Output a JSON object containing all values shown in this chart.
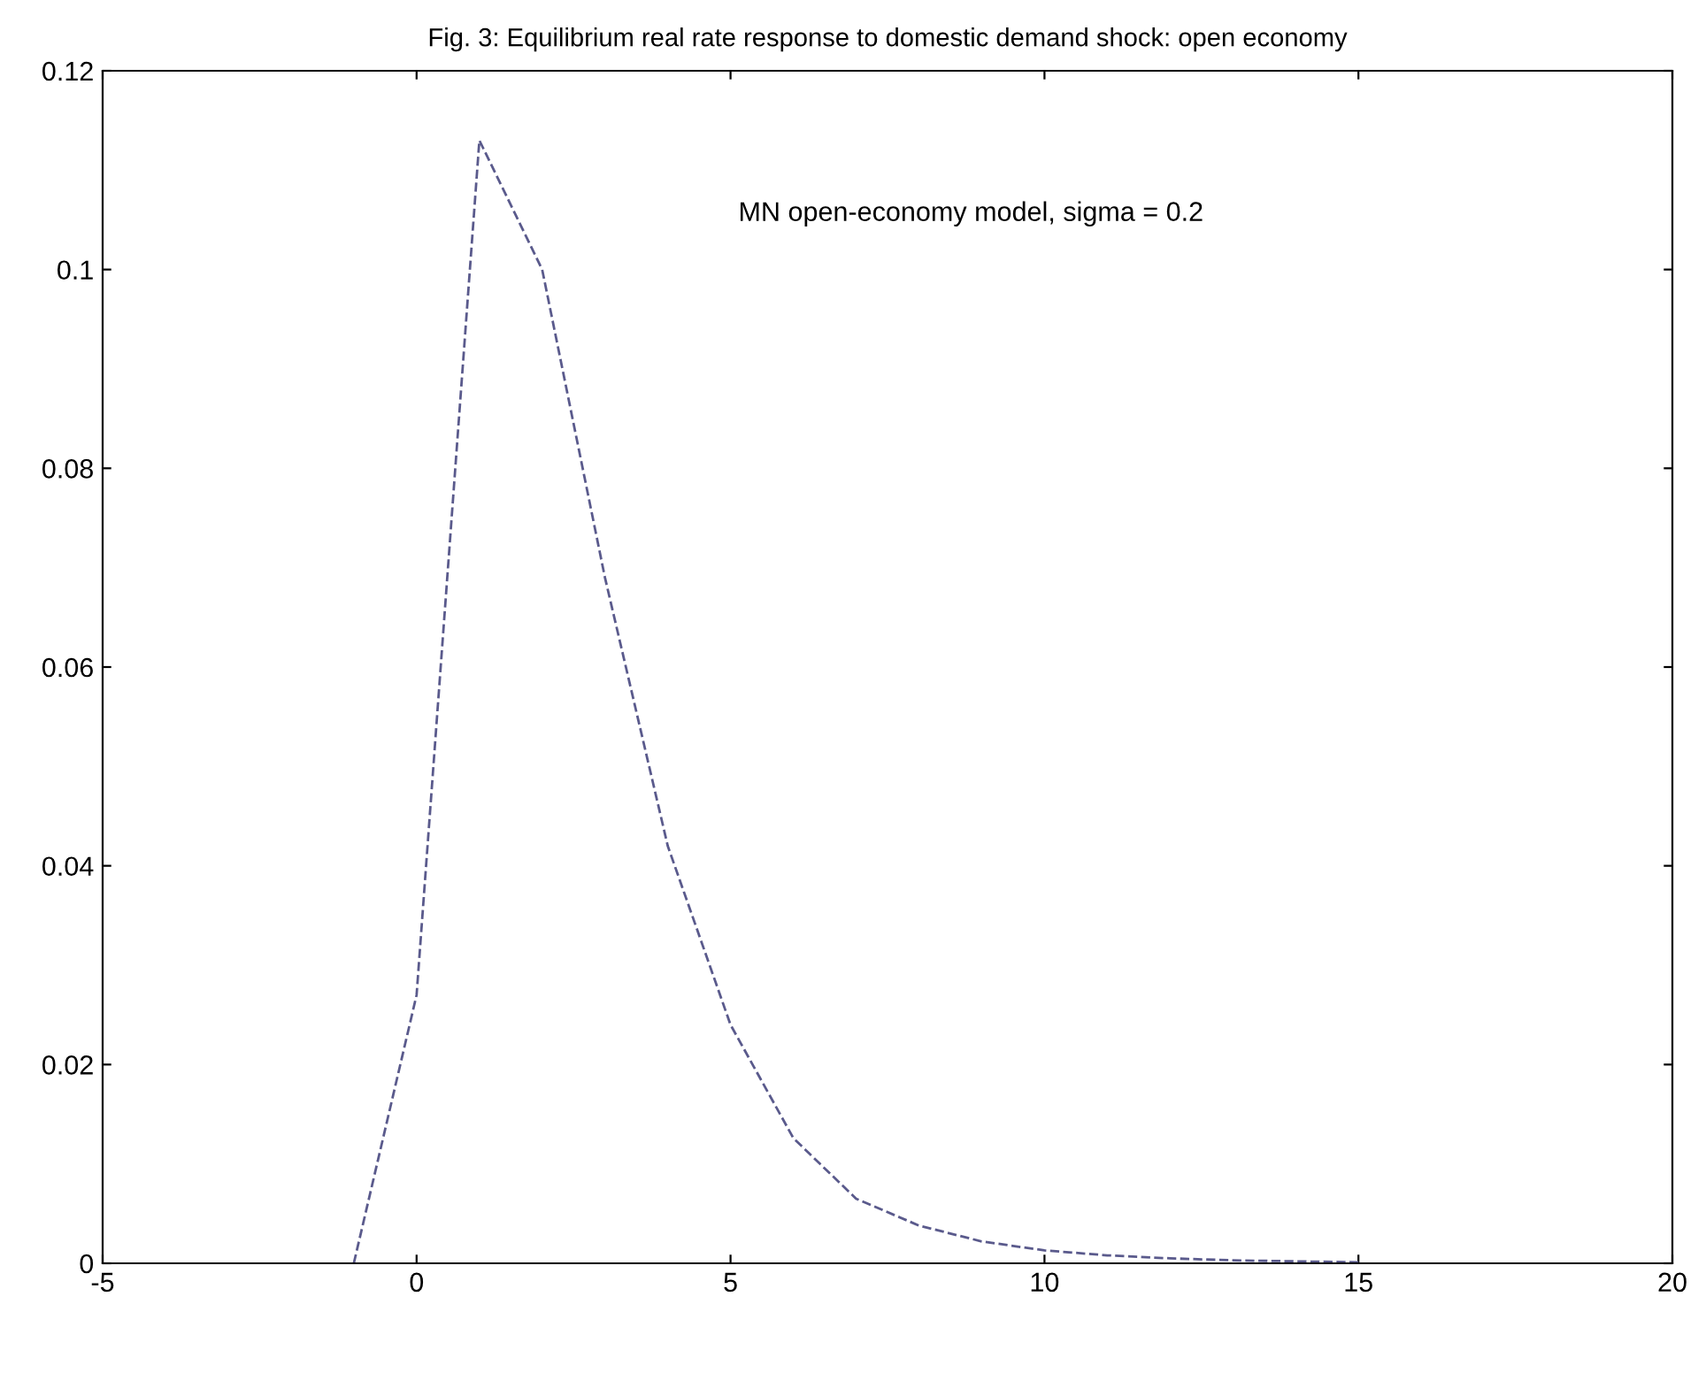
{
  "chart_data": {
    "type": "line",
    "title": "Fig. 3: Equilibrium real rate response to domestic demand shock: open economy",
    "x": [
      -1,
      0,
      1,
      2,
      3,
      4,
      5,
      6,
      7,
      8,
      9,
      10,
      11,
      12,
      13,
      14,
      15
    ],
    "series": [
      {
        "color": "#5a5a8c",
        "values": [
          0,
          0.027,
          0.113,
          0.1,
          0.069,
          0.042,
          0.024,
          0.0126,
          0.0065,
          0.0038,
          0.0022,
          0.0013,
          0.0008,
          0.0005,
          0.0003,
          0.0002,
          0.0001
        ]
      }
    ],
    "line_style": "dashed",
    "marker": "none",
    "grid": false,
    "legend": false,
    "annotations": [
      "MN open-economy model, sigma = 0.2"
    ],
    "xlim": [
      -5,
      20
    ],
    "xticks": [
      -5,
      0,
      5,
      10,
      15,
      20
    ],
    "ylim": [
      0,
      0.12
    ],
    "yticks": [
      0,
      0.02,
      0.04,
      0.06,
      0.08,
      0.1,
      0.12
    ]
  }
}
